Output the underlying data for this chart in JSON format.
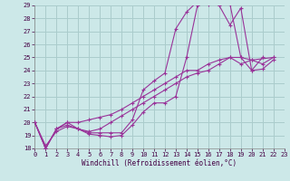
{
  "xlabel": "Windchill (Refroidissement éolien,°C)",
  "bg_color": "#cce8e8",
  "grid_color": "#aacccc",
  "line_color": "#993399",
  "xlim": [
    0,
    23
  ],
  "ylim": [
    18,
    29
  ],
  "xtick_vals": [
    0,
    1,
    2,
    3,
    4,
    5,
    6,
    7,
    8,
    9,
    10,
    11,
    12,
    13,
    14,
    15,
    16,
    17,
    18,
    19,
    20,
    21,
    22,
    23
  ],
  "ytick_vals": [
    18,
    19,
    20,
    21,
    22,
    23,
    24,
    25,
    26,
    27,
    28,
    29
  ],
  "lines": [
    [
      [
        0,
        20.0
      ],
      [
        1,
        18.0
      ],
      [
        2,
        19.5
      ],
      [
        3,
        20.0
      ],
      [
        4,
        19.5
      ],
      [
        5,
        19.1
      ],
      [
        6,
        19.0
      ],
      [
        7,
        18.9
      ],
      [
        8,
        19.0
      ],
      [
        9,
        19.8
      ],
      [
        10,
        20.8
      ],
      [
        11,
        21.5
      ],
      [
        12,
        21.5
      ],
      [
        13,
        22.0
      ],
      [
        14,
        25.0
      ],
      [
        15,
        29.0
      ],
      [
        16,
        29.2
      ],
      [
        17,
        29.0
      ],
      [
        18,
        27.5
      ],
      [
        19,
        28.8
      ],
      [
        20,
        24.0
      ],
      [
        21,
        24.1
      ],
      [
        22,
        24.8
      ]
    ],
    [
      [
        0,
        20.0
      ],
      [
        1,
        18.0
      ],
      [
        2,
        19.5
      ],
      [
        3,
        19.8
      ],
      [
        4,
        19.5
      ],
      [
        5,
        19.2
      ],
      [
        6,
        19.2
      ],
      [
        7,
        19.2
      ],
      [
        8,
        19.2
      ],
      [
        9,
        20.2
      ],
      [
        10,
        22.5
      ],
      [
        11,
        23.2
      ],
      [
        12,
        23.8
      ],
      [
        13,
        27.2
      ],
      [
        14,
        28.5
      ],
      [
        15,
        29.3
      ],
      [
        16,
        29.1
      ],
      [
        17,
        29.3
      ],
      [
        18,
        29.1
      ],
      [
        19,
        25.0
      ],
      [
        20,
        24.0
      ],
      [
        21,
        25.0
      ]
    ],
    [
      [
        0,
        20.0
      ],
      [
        1,
        18.2
      ],
      [
        2,
        19.3
      ],
      [
        3,
        19.7
      ],
      [
        4,
        19.5
      ],
      [
        5,
        19.3
      ],
      [
        6,
        19.5
      ],
      [
        7,
        20.0
      ],
      [
        8,
        20.5
      ],
      [
        9,
        21.0
      ],
      [
        10,
        21.5
      ],
      [
        11,
        22.0
      ],
      [
        12,
        22.5
      ],
      [
        13,
        23.0
      ],
      [
        14,
        23.5
      ],
      [
        15,
        23.8
      ],
      [
        16,
        24.0
      ],
      [
        17,
        24.5
      ],
      [
        18,
        25.0
      ],
      [
        19,
        25.0
      ],
      [
        20,
        24.8
      ],
      [
        21,
        24.5
      ],
      [
        22,
        25.0
      ]
    ],
    [
      [
        0,
        20.0
      ],
      [
        1,
        18.0
      ],
      [
        2,
        19.5
      ],
      [
        3,
        20.0
      ],
      [
        4,
        20.0
      ],
      [
        5,
        20.2
      ],
      [
        6,
        20.4
      ],
      [
        7,
        20.6
      ],
      [
        8,
        21.0
      ],
      [
        9,
        21.5
      ],
      [
        10,
        22.0
      ],
      [
        11,
        22.5
      ],
      [
        12,
        23.0
      ],
      [
        13,
        23.5
      ],
      [
        14,
        24.0
      ],
      [
        15,
        24.0
      ],
      [
        16,
        24.5
      ],
      [
        17,
        24.8
      ],
      [
        18,
        25.0
      ],
      [
        19,
        24.5
      ],
      [
        20,
        24.8
      ],
      [
        22,
        25.0
      ]
    ]
  ]
}
